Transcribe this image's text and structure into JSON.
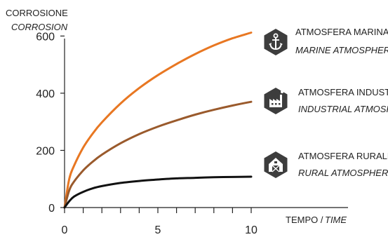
{
  "chart_data": {
    "type": "line",
    "ylabel": "CORROSIONE",
    "ylabel_en": "CORROSION",
    "xlabel_prefix": "TEMPO /",
    "xlabel_en": "TIME",
    "xlim": [
      0,
      10
    ],
    "ylim": [
      0,
      650
    ],
    "x_ticks": [
      0,
      5,
      10
    ],
    "x_minor_ticks": [
      1,
      2,
      3,
      4,
      6,
      7,
      8,
      9
    ],
    "y_ticks": [
      0,
      200,
      400,
      600
    ],
    "grid": false,
    "legend_placement": "right",
    "series": [
      {
        "name": "ATMOSFERA MARINA",
        "name_en": "MARINE ATMOSPHERE",
        "icon": "anchor-icon",
        "color": "#e87722",
        "x": [
          0,
          0.25,
          0.5,
          1,
          1.5,
          2,
          3,
          4,
          5,
          6,
          7,
          8,
          9,
          10
        ],
        "y": [
          0,
          100,
          145,
          210,
          258,
          298,
          364,
          418,
          463,
          502,
          537,
          567,
          592,
          612
        ]
      },
      {
        "name": "ATMOSFERA INDUSTRIALE",
        "name_en": "INDUSTRIAL ATMOSPHERE",
        "icon": "factory-icon",
        "color": "#9a5a2c",
        "x": [
          0,
          0.25,
          0.5,
          1,
          1.5,
          2,
          3,
          4,
          5,
          6,
          7,
          8,
          9,
          10
        ],
        "y": [
          0,
          60,
          90,
          130,
          160,
          185,
          225,
          257,
          283,
          305,
          325,
          342,
          357,
          370
        ]
      },
      {
        "name": "ATMOSFERA RURALE",
        "name_en": "RURAL ATMOSPHERE",
        "icon": "barn-icon",
        "color": "#111111",
        "x": [
          0,
          0.25,
          0.5,
          1,
          1.5,
          2,
          3,
          4,
          5,
          6,
          7,
          8,
          9,
          10
        ],
        "y": [
          0,
          22,
          38,
          55,
          67,
          75,
          86,
          93,
          98,
          102,
          104,
          106,
          107,
          108
        ]
      }
    ]
  }
}
